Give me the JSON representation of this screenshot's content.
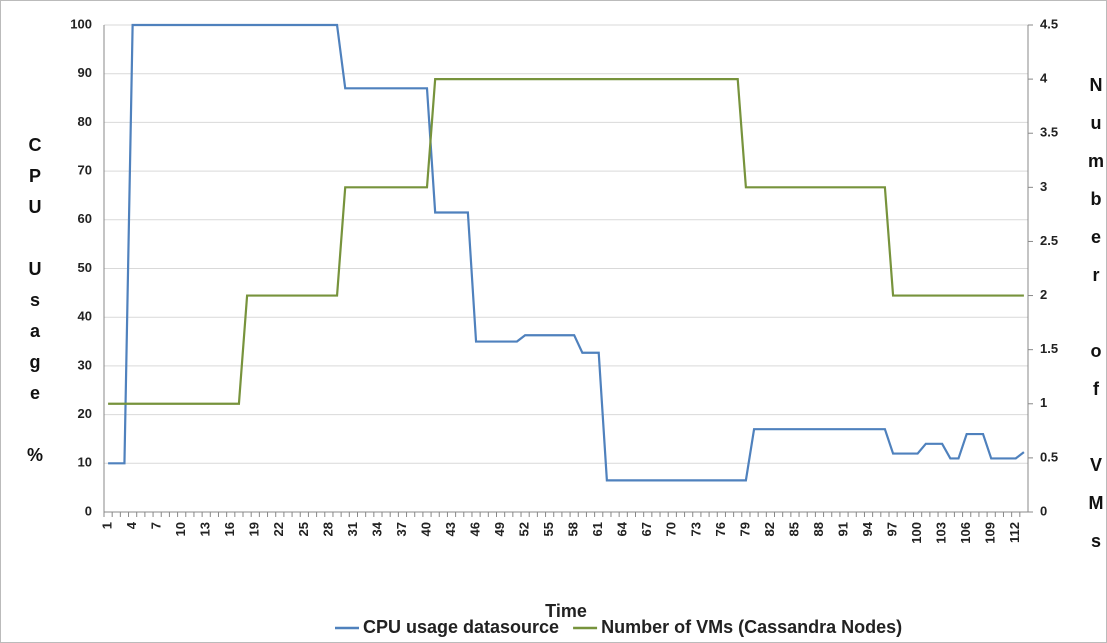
{
  "chart_data": {
    "type": "line",
    "ylabel": "CPU Usage %",
    "y2label": "Number of VMs",
    "xlabel": "Time",
    "categories": [
      1,
      null,
      null,
      4,
      null,
      null,
      7,
      null,
      null,
      10,
      null,
      null,
      13,
      null,
      null,
      16,
      null,
      null,
      19,
      null,
      null,
      22,
      null,
      null,
      25,
      null,
      null,
      28,
      null,
      null,
      31,
      null,
      null,
      34,
      null,
      null,
      37,
      null,
      null,
      40,
      null,
      null,
      43,
      null,
      null,
      46,
      null,
      null,
      49,
      null,
      null,
      52,
      null,
      null,
      55,
      null,
      null,
      58,
      null,
      null,
      61,
      null,
      null,
      64,
      null,
      null,
      67,
      null,
      null,
      70,
      null,
      null,
      73,
      null,
      null,
      76,
      null,
      null,
      79,
      null,
      null,
      82,
      null,
      null,
      85,
      null,
      null,
      88,
      null,
      null,
      91,
      null,
      null,
      94,
      null,
      null,
      97,
      null,
      null,
      100,
      null,
      null,
      103,
      null,
      null,
      106,
      null,
      null,
      109,
      null,
      null,
      112,
      null
    ],
    "series": [
      {
        "name": "CPU usage datasource",
        "color": "#4f81bd",
        "values": [
          10,
          10,
          10,
          100,
          100,
          100,
          100,
          100,
          100,
          100,
          100,
          100,
          100,
          100,
          100,
          100,
          100,
          100,
          100,
          100,
          100,
          100,
          100,
          100,
          100,
          100,
          100,
          100,
          100,
          87,
          87,
          87,
          87,
          87,
          87,
          87,
          87,
          87,
          87,
          87,
          61.5,
          61.5,
          61.5,
          61.5,
          61.5,
          35,
          35,
          35,
          35,
          35,
          35,
          36.3,
          36.3,
          36.3,
          36.3,
          36.3,
          36.3,
          36.3,
          32.7,
          32.7,
          32.7,
          6.5,
          6.5,
          6.5,
          6.5,
          6.5,
          6.5,
          6.5,
          6.5,
          6.5,
          6.5,
          6.5,
          6.5,
          6.5,
          6.5,
          6.5,
          6.5,
          6.5,
          6.5,
          17,
          17,
          17,
          17,
          17,
          17,
          17,
          17,
          17,
          17,
          17,
          17,
          17,
          17,
          17,
          17,
          17,
          12,
          12,
          12,
          12,
          14,
          14,
          14,
          11,
          11,
          16,
          16,
          16,
          11,
          11,
          11,
          11,
          12.3
        ]
      },
      {
        "name": "Number of VMs (Cassandra Nodes)",
        "color": "#77933c",
        "axis": "y2",
        "values": [
          1,
          1,
          1,
          1,
          1,
          1,
          1,
          1,
          1,
          1,
          1,
          1,
          1,
          1,
          1,
          1,
          1,
          2,
          2,
          2,
          2,
          2,
          2,
          2,
          2,
          2,
          2,
          2,
          2,
          3,
          3,
          3,
          3,
          3,
          3,
          3,
          3,
          3,
          3,
          3,
          4,
          4,
          4,
          4,
          4,
          4,
          4,
          4,
          4,
          4,
          4,
          4,
          4,
          4,
          4,
          4,
          4,
          4,
          4,
          4,
          4,
          4,
          4,
          4,
          4,
          4,
          4,
          4,
          4,
          4,
          4,
          4,
          4,
          4,
          4,
          4,
          4,
          4,
          3,
          3,
          3,
          3,
          3,
          3,
          3,
          3,
          3,
          3,
          3,
          3,
          3,
          3,
          3,
          3,
          3,
          3,
          2,
          2,
          2,
          2,
          2,
          2,
          2,
          2,
          2,
          2,
          2,
          2,
          2,
          2,
          2,
          2,
          2
        ]
      }
    ],
    "ylim": [
      0,
      100
    ],
    "yticks": [
      0,
      10,
      20,
      30,
      40,
      50,
      60,
      70,
      80,
      90,
      100
    ],
    "y2lim": [
      0,
      4.5
    ],
    "y2ticks": [
      0,
      0.5,
      1,
      1.5,
      2,
      2.5,
      3,
      3.5,
      4,
      4.5
    ],
    "grid": true,
    "legend": "bottom"
  }
}
